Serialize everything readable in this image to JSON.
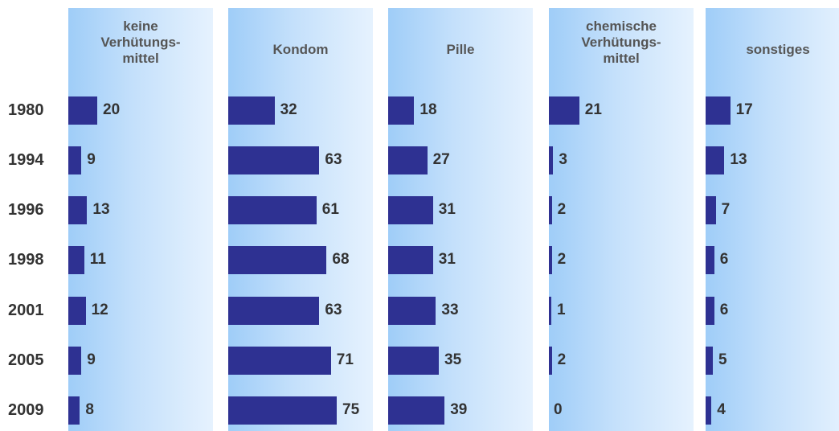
{
  "chart_data": {
    "type": "bar",
    "orientation": "horizontal",
    "categories": [
      "1980",
      "1994",
      "1996",
      "1998",
      "2001",
      "2005",
      "2009"
    ],
    "series": [
      {
        "name": "keine\nVerhütungs-\nmittel",
        "values": [
          20,
          9,
          13,
          11,
          12,
          9,
          8
        ]
      },
      {
        "name": "Kondom",
        "values": [
          32,
          63,
          61,
          68,
          63,
          71,
          75
        ]
      },
      {
        "name": "Pille",
        "values": [
          18,
          27,
          31,
          31,
          33,
          35,
          39
        ]
      },
      {
        "name": "chemische\nVerhütungs-\nmittel",
        "values": [
          21,
          3,
          2,
          2,
          1,
          2,
          0
        ]
      },
      {
        "name": "sonstiges",
        "values": [
          17,
          13,
          7,
          6,
          6,
          5,
          4
        ]
      }
    ],
    "data_labels": true,
    "colors": {
      "bar": "#2e3192",
      "panel_gradient_start": "#9fcdf8",
      "panel_gradient_end": "#e6f2fe",
      "text": "#333333"
    }
  }
}
